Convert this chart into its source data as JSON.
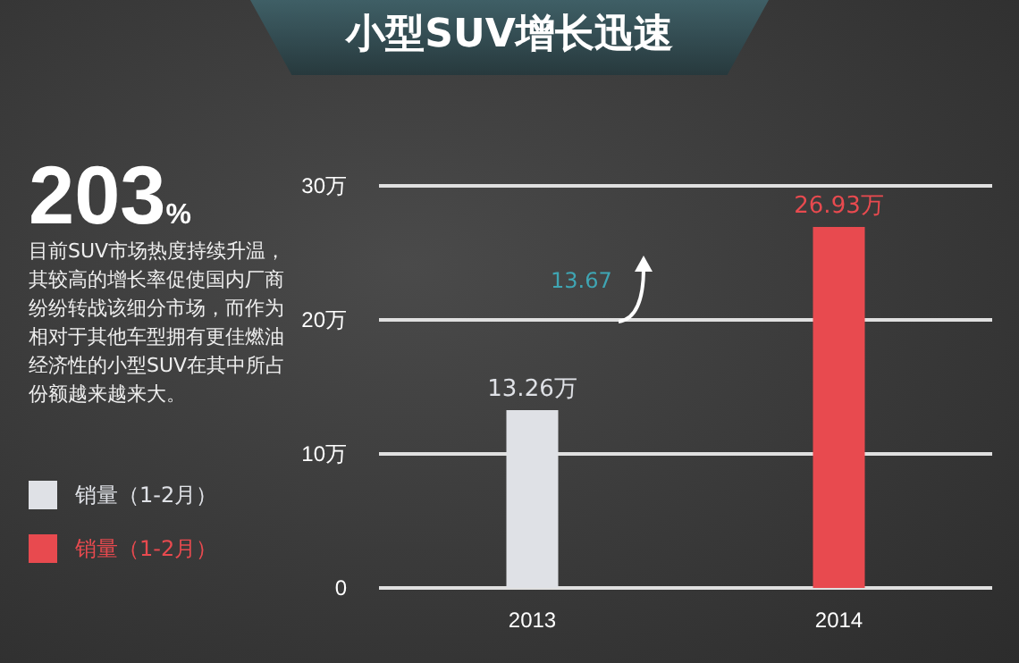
{
  "chart_data": {
    "type": "bar",
    "title": "小型SUV增长迅速",
    "categories": [
      "2013",
      "2014"
    ],
    "series": [
      {
        "name": "销量（1-2月）",
        "color": "#dfe1e6",
        "values": [
          13.26,
          null
        ],
        "value_labels": [
          "13.26万",
          null
        ]
      },
      {
        "name": "销量（1-2月）",
        "color": "#e84a4f",
        "values": [
          null,
          26.93
        ],
        "value_labels": [
          null,
          "26.93万"
        ]
      }
    ],
    "ylim": [
      0,
      30
    ],
    "yticks": [
      0,
      {
        "value": 10,
        "label": "10万"
      },
      {
        "value": 20,
        "label": "20万"
      },
      {
        "value": 30,
        "label": "30万"
      }
    ],
    "grid": "y",
    "legend": "left",
    "annotations": [
      "203%",
      "目前SUV市场热度持续升温，其较高的增长率促使国内厂商纷纷转战该细分市场，而作为相对于其他车型拥有更佳燃油经济性的小型SUV在其中所占份额越来越来大。",
      "13.67"
    ]
  }
}
